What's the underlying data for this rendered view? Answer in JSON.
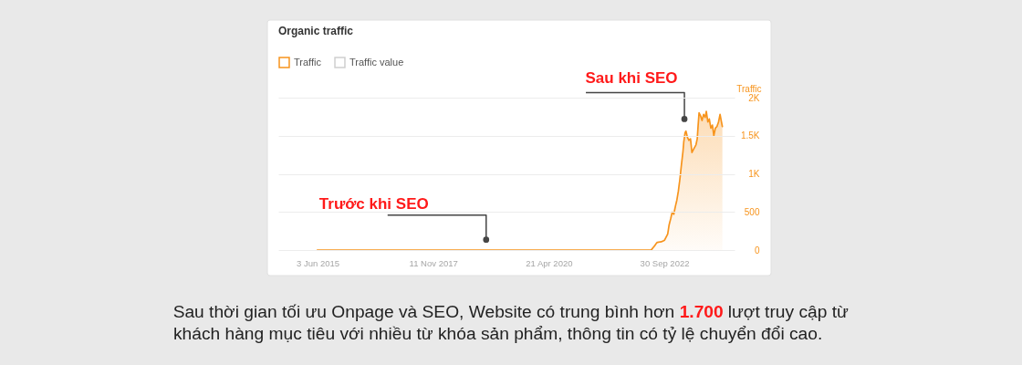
{
  "chart_data": {
    "type": "area",
    "title": "Organic traffic",
    "ylabel": "Traffic",
    "x": [
      "2015-06-01",
      "2017-01-01",
      "2019-01-01",
      "2021-01-01",
      "2022-06-20",
      "2022-07-10",
      "2022-08-05",
      "2022-09-10",
      "2022-10-02",
      "2022-10-26",
      "2022-11-06",
      "2022-11-18",
      "2022-11-30",
      "2022-12-12",
      "2022-12-24",
      "2023-01-04",
      "2023-01-16",
      "2023-01-28",
      "2023-02-09",
      "2023-02-20",
      "2023-02-27",
      "2023-03-09",
      "2023-03-16",
      "2023-03-27",
      "2023-04-08",
      "2023-04-20",
      "2023-05-01",
      "2023-05-13",
      "2023-06-01",
      "2023-06-11",
      "2023-06-18",
      "2023-06-25",
      "2023-07-07",
      "2023-07-18",
      "2023-07-30",
      "2023-08-11",
      "2023-08-20",
      "2023-09-01",
      "2023-09-12",
      "2023-09-24",
      "2023-10-06",
      "2023-10-17",
      "2023-10-29",
      "2023-11-10",
      "2023-11-22",
      "2023-12-04",
      "2023-12-15",
      "2023-12-22"
    ],
    "series": [
      {
        "name": "Traffic",
        "color": "#f7941d",
        "values": [
          0,
          0,
          0,
          0,
          0,
          40,
          100,
          110,
          130,
          210,
          330,
          410,
          500,
          470,
          570,
          650,
          770,
          930,
          1120,
          1280,
          1420,
          1540,
          1560,
          1480,
          1440,
          1460,
          1280,
          1320,
          1380,
          1460,
          1640,
          1800,
          1760,
          1700,
          1780,
          1740,
          1820,
          1680,
          1720,
          1600,
          1640,
          1500,
          1600,
          1620,
          1680,
          1780,
          1680,
          1620
        ]
      },
      {
        "name": "Traffic value",
        "color": "#cfcfcf",
        "values": [
          null,
          null,
          null,
          null,
          null,
          null,
          null,
          null,
          null,
          null,
          null,
          null,
          null,
          null,
          null,
          null,
          null,
          null,
          null,
          null,
          null,
          null,
          null,
          null,
          null,
          null,
          null,
          null,
          null,
          null,
          null,
          null,
          null,
          null,
          null,
          null,
          null,
          null,
          null,
          null,
          null,
          null,
          null,
          null,
          null,
          null,
          null,
          null
        ]
      }
    ],
    "xlim": [
      "2014-08-04",
      "2024-03-25"
    ],
    "xticks": [
      {
        "value": "2015-06-03",
        "label": "3 Jun 2015"
      },
      {
        "value": "2017-11-11",
        "label": "11 Nov 2017"
      },
      {
        "value": "2020-04-21",
        "label": "21 Apr 2020"
      },
      {
        "value": "2022-09-30",
        "label": "30 Sep 2022"
      }
    ],
    "ylim": [
      0,
      2000
    ],
    "yticks": [
      0,
      500,
      {
        "value": 1000,
        "label": "1K"
      },
      {
        "value": 1500,
        "label": "1.5K"
      },
      {
        "value": 2000,
        "label": "2K"
      }
    ],
    "grid": "y",
    "legend": "top left",
    "annotations": [
      {
        "text": "Trước khi SEO",
        "x": "2018-12-25",
        "y": 135
      },
      {
        "text": "Sau khi SEO",
        "x": "2023-03-04",
        "y": 1720
      },
      "Sau thời gian tối ưu Onpage và SEO, Website có trung bình hơn 1.700 lượt truy cập từ khách hàng mục tiêu với nhiều từ khóa sản phẩm, thông tin có tỷ lệ chuyển đổi cao."
    ]
  }
}
